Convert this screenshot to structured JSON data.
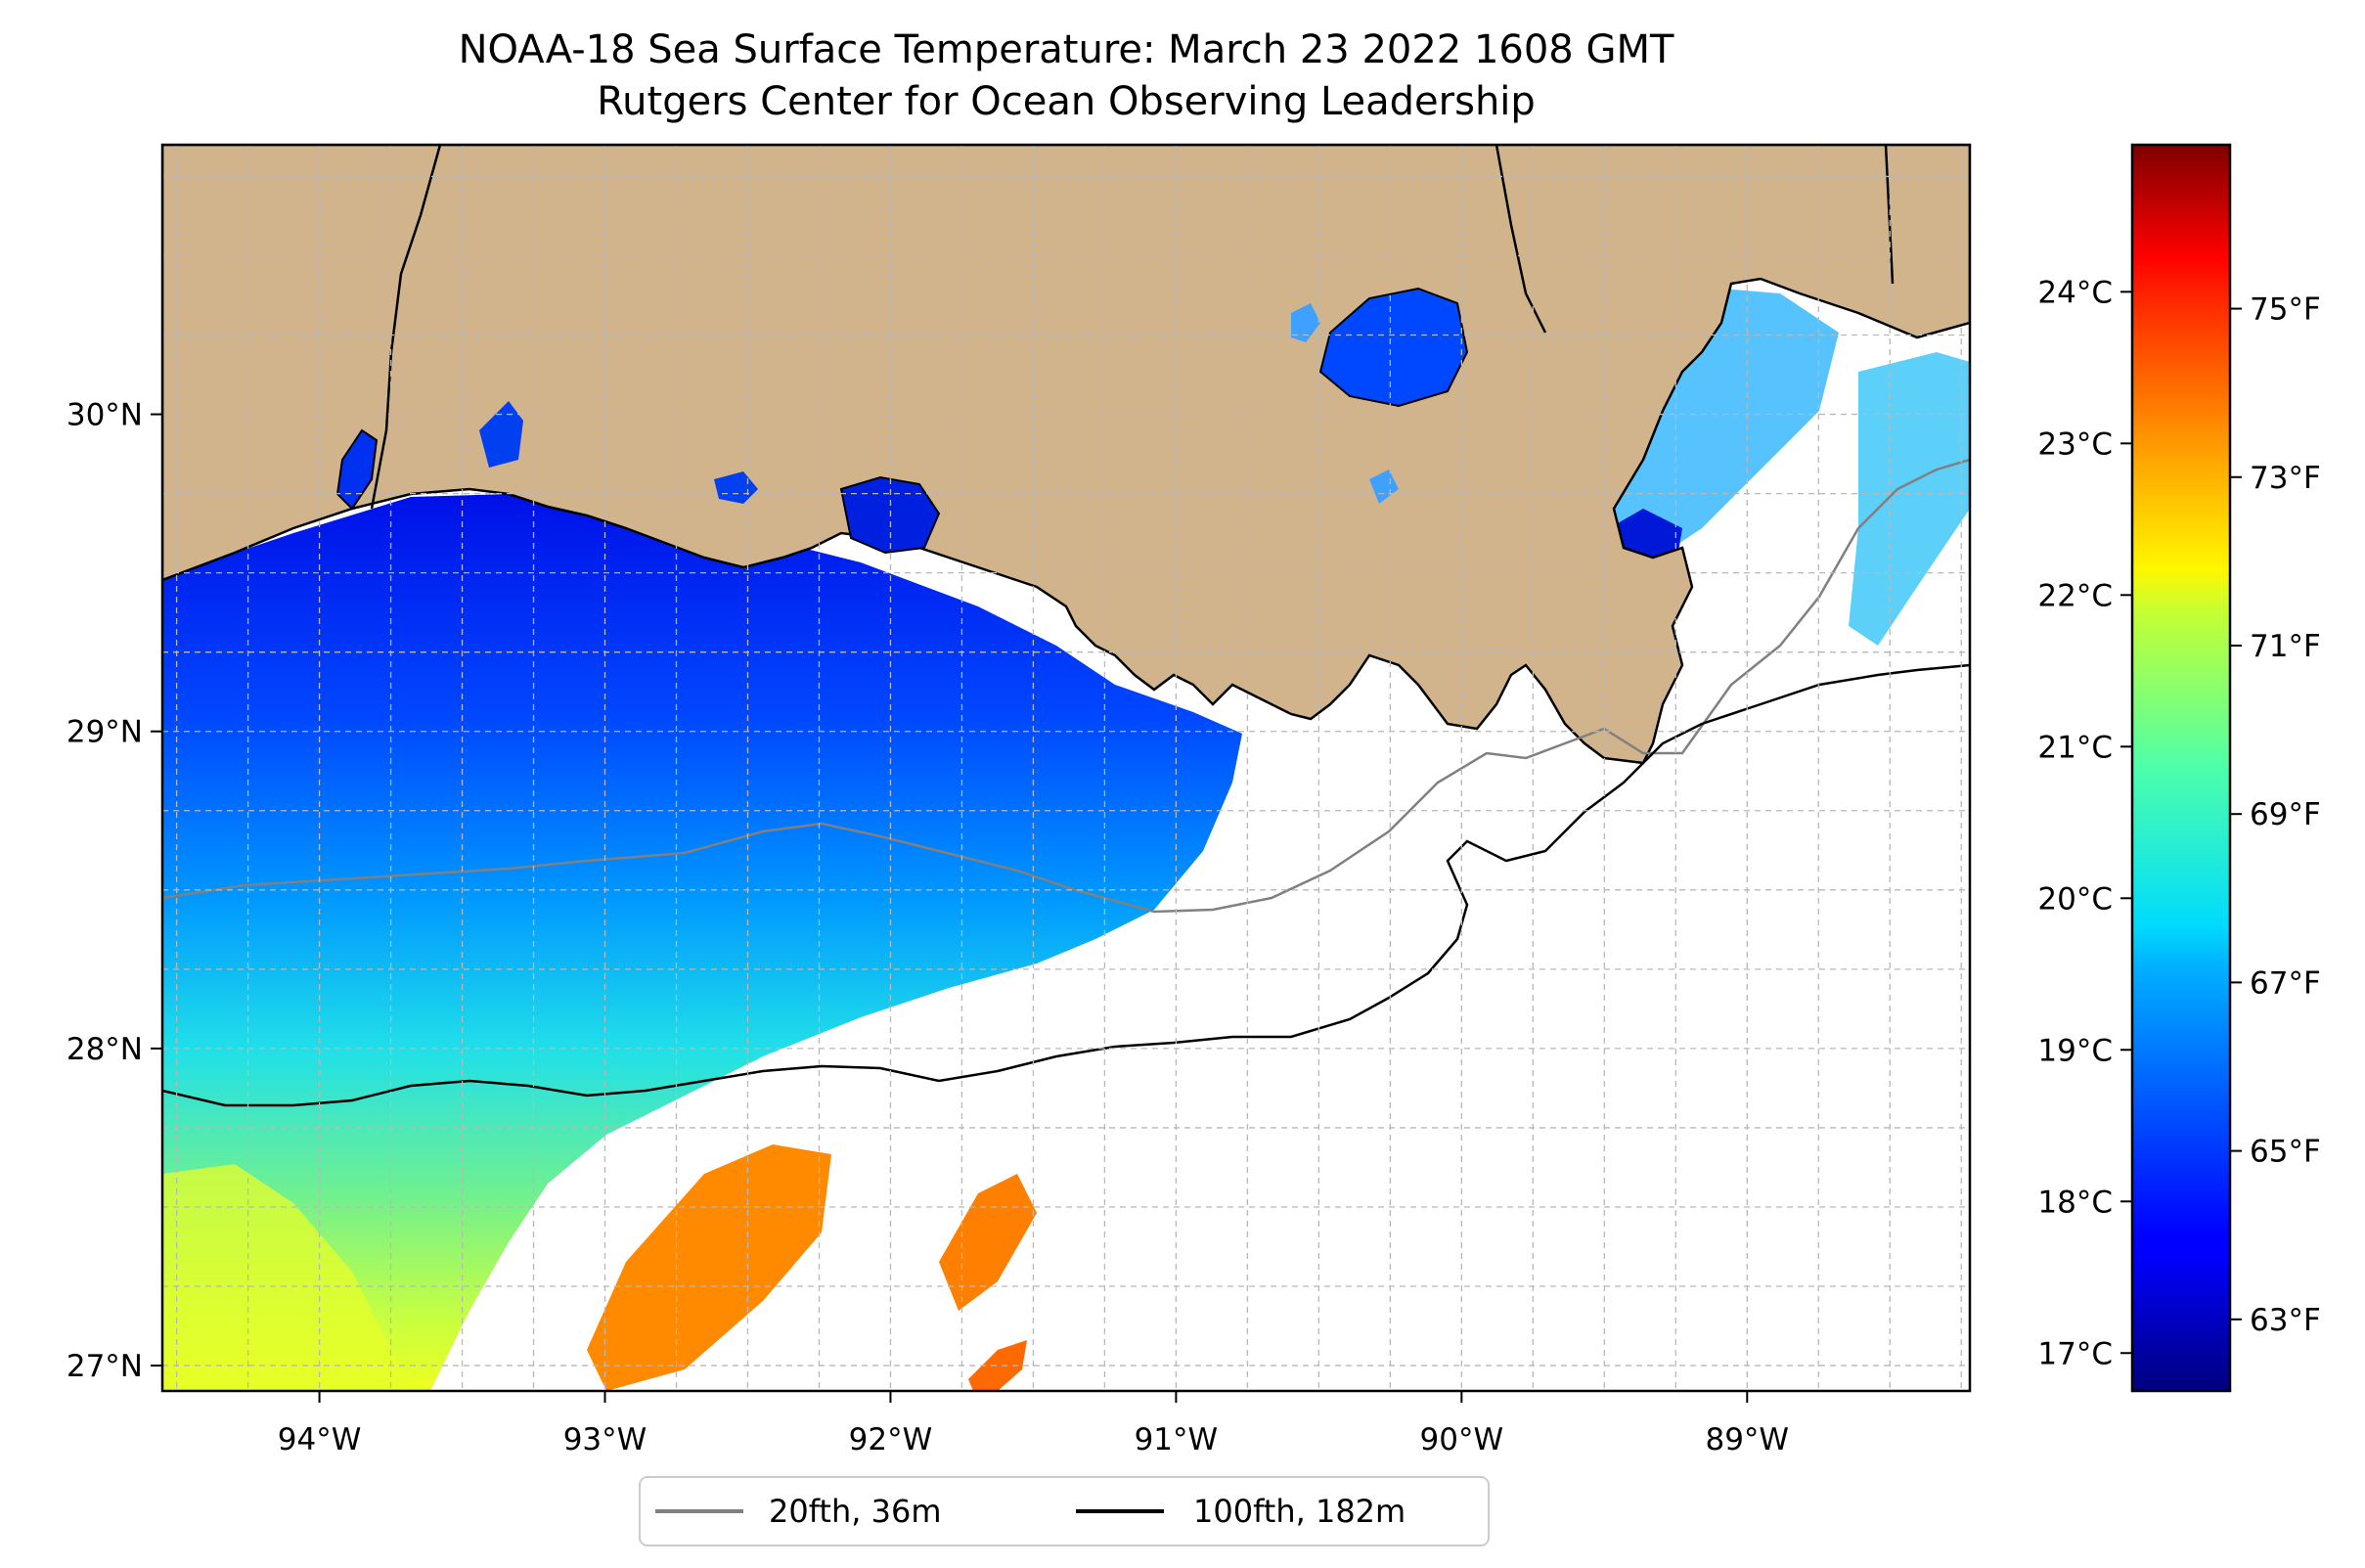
{
  "title": {
    "line1": "NOAA-18 Sea Surface Temperature: March 23 2022 1608 GMT",
    "line2": "Rutgers Center for Ocean Observing Leadership"
  },
  "map": {
    "lon_range": [
      -94.55,
      -88.22
    ],
    "lat_range": [
      26.92,
      30.85
    ],
    "lon_ticks": [
      {
        "value": -94,
        "label": "94°W"
      },
      {
        "value": -93,
        "label": "93°W"
      },
      {
        "value": -92,
        "label": "92°W"
      },
      {
        "value": -91,
        "label": "91°W"
      },
      {
        "value": -90,
        "label": "90°W"
      },
      {
        "value": -89,
        "label": "89°W"
      }
    ],
    "lat_ticks": [
      {
        "value": 27,
        "label": "27°N"
      },
      {
        "value": 28,
        "label": "28°N"
      },
      {
        "value": 29,
        "label": "29°N"
      },
      {
        "value": 30,
        "label": "30°N"
      }
    ],
    "grid": "dashed",
    "colors": {
      "land": "#d2b48c",
      "no_data": "#ffffff",
      "coastline": "#000000",
      "isobath_20fth": "#808080",
      "isobath_100fth": "#000000"
    }
  },
  "colorbar": {
    "colormap": "jet",
    "range_c": [
      16.75,
      24.97
    ],
    "celsius_ticks": [
      {
        "value": 17,
        "label": "17°C"
      },
      {
        "value": 18,
        "label": "18°C"
      },
      {
        "value": 19,
        "label": "19°C"
      },
      {
        "value": 20,
        "label": "20°C"
      },
      {
        "value": 21,
        "label": "21°C"
      },
      {
        "value": 22,
        "label": "22°C"
      },
      {
        "value": 23,
        "label": "23°C"
      },
      {
        "value": 24,
        "label": "24°C"
      }
    ],
    "fahrenheit_ticks": [
      {
        "value": 63,
        "label": "63°F"
      },
      {
        "value": 65,
        "label": "65°F"
      },
      {
        "value": 67,
        "label": "67°F"
      },
      {
        "value": 69,
        "label": "69°F"
      },
      {
        "value": 71,
        "label": "71°F"
      },
      {
        "value": 73,
        "label": "73°F"
      },
      {
        "value": 75,
        "label": "75°F"
      }
    ]
  },
  "legend": {
    "placement": "bottom-center",
    "items": [
      {
        "label": "20fth, 36m",
        "color": "#808080"
      },
      {
        "label": "100fth, 182m",
        "color": "#000000"
      }
    ]
  }
}
